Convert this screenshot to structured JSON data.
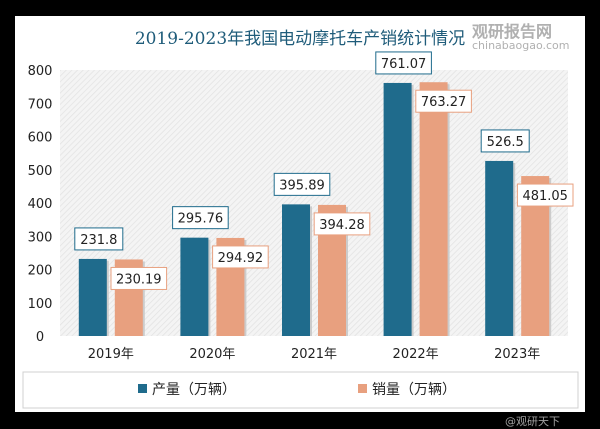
{
  "chart_data": {
    "type": "bar",
    "title": "2019-2023年我国电动摩托车产销统计情况",
    "categories": [
      "2019年",
      "2020年",
      "2021年",
      "2022年",
      "2023年"
    ],
    "series": [
      {
        "name": "产量（万辆）",
        "values": [
          231.8,
          295.76,
          395.89,
          761.07,
          526.5
        ],
        "labels": [
          "231.8",
          "295.76",
          "395.89",
          "761.07",
          "526.5"
        ],
        "color": "#1f6b8c"
      },
      {
        "name": "销量（万辆）",
        "values": [
          230.19,
          294.92,
          394.28,
          763.27,
          481.05
        ],
        "labels": [
          "230.19",
          "294.92",
          "394.28",
          "763.27",
          "481.05"
        ],
        "color": "#e8a07f"
      }
    ],
    "ylim": [
      0,
      800
    ],
    "yticks": [
      "0",
      "100",
      "200",
      "300",
      "400",
      "500",
      "600",
      "700",
      "800"
    ],
    "grid": false,
    "legend": "bottom",
    "title_color": "#1f5c7a"
  },
  "watermark": {
    "brand": "观研报告网",
    "url": "chinabaogao.com",
    "handle": "@观研天下"
  }
}
